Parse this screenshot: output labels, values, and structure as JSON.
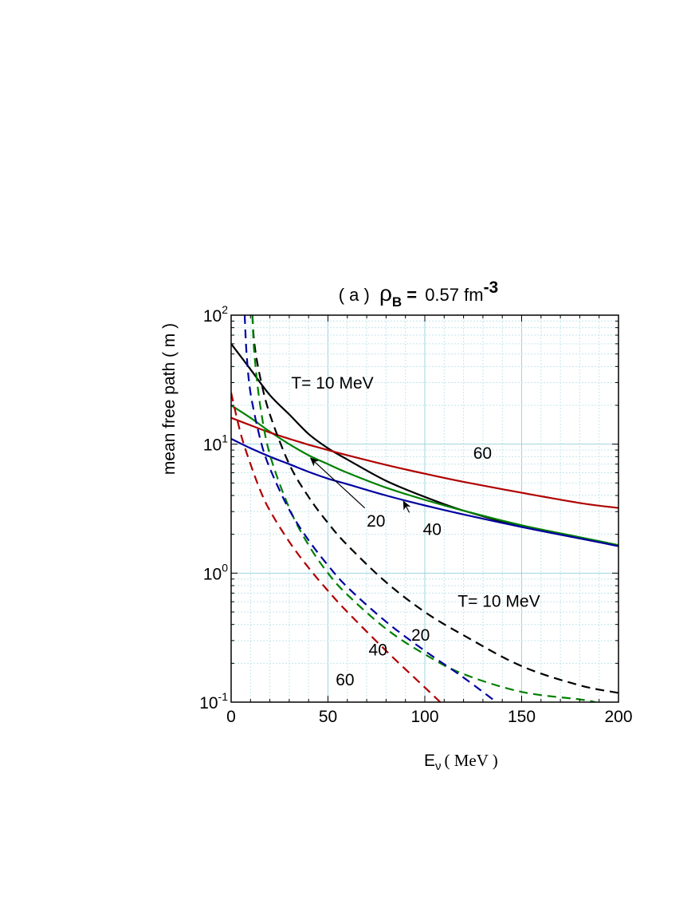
{
  "chart_data": {
    "type": "line",
    "title": {
      "prefix": "( a )",
      "rho": "ρ",
      "rho_sub": "B",
      "eq": "=",
      "value": "0.57 fm",
      "exponent": "-3"
    },
    "xlabel": {
      "symbol": "E",
      "sub": "ν",
      "unit": "( MeV )"
    },
    "ylabel": "mean free path  ( m )",
    "xlim": [
      0,
      200
    ],
    "ylim": [
      0.1,
      100
    ],
    "yscale": "log",
    "grid": true,
    "x_ticks": [
      "0",
      "50",
      "100",
      "150",
      "200"
    ],
    "y_ticks": [
      {
        "base": "10",
        "exp": "-1"
      },
      {
        "base": "10",
        "exp": "0"
      },
      {
        "base": "10",
        "exp": "1"
      },
      {
        "base": "10",
        "exp": "2"
      }
    ],
    "series": [
      {
        "temperature": 10,
        "style": "solid",
        "color": "#000000",
        "x": [
          0,
          10,
          20,
          30,
          40,
          50,
          60,
          80,
          100,
          120,
          150,
          180,
          200
        ],
        "y": [
          60,
          38,
          24,
          17,
          12,
          9.3,
          7.6,
          5.2,
          3.9,
          3.05,
          2.3,
          1.86,
          1.63
        ]
      },
      {
        "temperature": 20,
        "style": "solid",
        "color": "#008000",
        "x": [
          0,
          10,
          20,
          30,
          40,
          50,
          60,
          80,
          100,
          120,
          150,
          180,
          200
        ],
        "y": [
          20,
          16,
          12.5,
          10,
          8.2,
          7,
          6,
          4.6,
          3.7,
          3.05,
          2.35,
          1.9,
          1.65
        ]
      },
      {
        "temperature": 40,
        "style": "solid",
        "color": "#0000a0",
        "x": [
          0,
          10,
          20,
          30,
          40,
          50,
          60,
          80,
          100,
          120,
          150,
          180,
          200
        ],
        "y": [
          11,
          9.3,
          8,
          7,
          6.1,
          5.4,
          4.9,
          4,
          3.35,
          2.85,
          2.28,
          1.86,
          1.62
        ]
      },
      {
        "temperature": 60,
        "style": "solid",
        "color": "#b00000",
        "x": [
          0,
          10,
          20,
          30,
          40,
          50,
          60,
          80,
          100,
          120,
          150,
          180,
          200
        ],
        "y": [
          16,
          14,
          12.3,
          11,
          9.9,
          9,
          8.2,
          6.9,
          5.9,
          5.1,
          4.2,
          3.5,
          3.2
        ]
      },
      {
        "temperature": 10,
        "style": "dashed",
        "color": "#000000",
        "x": [
          11,
          12,
          15,
          20,
          30,
          40,
          50,
          60,
          80,
          100,
          120,
          150,
          180,
          200
        ],
        "y": [
          100,
          60,
          33,
          17,
          7,
          3.9,
          2.45,
          1.65,
          0.85,
          0.5,
          0.33,
          0.19,
          0.135,
          0.118
        ]
      },
      {
        "temperature": 20,
        "style": "dashed",
        "color": "#008000",
        "x": [
          11,
          12,
          15,
          20,
          30,
          40,
          50,
          60,
          80,
          100,
          120,
          150,
          180,
          188
        ],
        "y": [
          100,
          50,
          20,
          8.3,
          3.2,
          1.65,
          1,
          0.68,
          0.37,
          0.235,
          0.165,
          0.12,
          0.105,
          0.1
        ]
      },
      {
        "temperature": 40,
        "style": "dashed",
        "color": "#0000a0",
        "x": [
          7,
          8,
          10,
          15,
          20,
          30,
          40,
          50,
          60,
          80,
          100,
          120,
          137
        ],
        "y": [
          100,
          50,
          25,
          11,
          6.5,
          3.1,
          1.8,
          1.15,
          0.78,
          0.42,
          0.25,
          0.155,
          0.1
        ]
      },
      {
        "temperature": 60,
        "style": "dashed",
        "color": "#b00000",
        "x": [
          0,
          5,
          10,
          15,
          20,
          30,
          40,
          50,
          60,
          80,
          100,
          108
        ],
        "y": [
          25,
          12,
          7,
          4.4,
          3.05,
          1.75,
          1.1,
          0.73,
          0.5,
          0.25,
          0.13,
          0.1
        ]
      }
    ],
    "annotations": [
      {
        "text": "T= 10 MeV",
        "x": 31,
        "y": 27
      },
      {
        "text": "60",
        "x": 125,
        "y": 7.7
      },
      {
        "text": "20",
        "x": 70,
        "y": 2.3
      },
      {
        "text": "40",
        "x": 99,
        "y": 1.98
      },
      {
        "text": "T= 10 MeV",
        "x": 117,
        "y": 0.55
      },
      {
        "text": "20",
        "x": 93,
        "y": 0.3
      },
      {
        "text": "40",
        "x": 71,
        "y": 0.23
      },
      {
        "text": "60",
        "x": 54,
        "y": 0.135
      }
    ],
    "arrows": [
      {
        "from": [
          69,
          3.2
        ],
        "to": [
          41,
          7.8
        ]
      },
      {
        "from": [
          92,
          2.95
        ],
        "to": [
          89,
          3.6
        ]
      }
    ]
  }
}
